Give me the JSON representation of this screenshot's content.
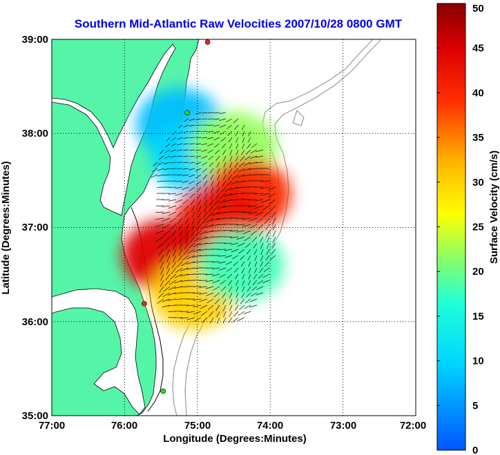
{
  "title": "Southern Mid-Atlantic Raw Velocities 2007/10/28 0800 GMT",
  "axes": {
    "xlabel": "Longitude (Degrees:Minutes)",
    "ylabel": "Latitude (Degrees:Minutes)",
    "xticks": [
      "77:00",
      "76:00",
      "75:00",
      "74:00",
      "73:00",
      "72:00"
    ],
    "yticks": [
      "39:00",
      "38:00",
      "37:00",
      "36:00",
      "35:00"
    ],
    "xlim": [
      -77,
      -72
    ],
    "ylim": [
      35,
      39
    ]
  },
  "colorbar": {
    "label": "Surface Velocity (cm/s)",
    "ticks": [
      "50",
      "45",
      "40",
      "35",
      "30",
      "25",
      "20",
      "15",
      "10",
      "5",
      "0"
    ],
    "range": [
      0,
      50
    ]
  },
  "colors": {
    "land": "#55f5a8",
    "water": "#ffffff",
    "title": "#0000ee",
    "bathymetry": "#999999"
  },
  "stations": [
    {
      "lon": -74.86,
      "lat": 38.97,
      "color": "#ff2020"
    },
    {
      "lon": -75.14,
      "lat": 38.22,
      "color": "#22dd22"
    },
    {
      "lon": -75.73,
      "lat": 36.19,
      "color": "#ff2020"
    },
    {
      "lon": -75.47,
      "lat": 35.26,
      "color": "#22dd22"
    }
  ],
  "chart_data": {
    "type": "heatmap",
    "title": "Southern Mid-Atlantic Raw Velocities 2007/10/28 0800 GMT",
    "xlabel": "Longitude (Degrees:Minutes)",
    "ylabel": "Latitude (Degrees:Minutes)",
    "value_label": "Surface Velocity (cm/s)",
    "value_range": [
      0,
      50
    ],
    "field_regions": [
      {
        "lon": -75.25,
        "lat": 38.1,
        "speed": 8
      },
      {
        "lon": -75.05,
        "lat": 37.75,
        "speed": 10
      },
      {
        "lon": -74.5,
        "lat": 37.85,
        "speed": 22
      },
      {
        "lon": -74.3,
        "lat": 37.35,
        "speed": 40
      },
      {
        "lon": -74.7,
        "lat": 37.1,
        "speed": 42
      },
      {
        "lon": -75.45,
        "lat": 36.7,
        "speed": 45
      },
      {
        "lon": -75.05,
        "lat": 36.3,
        "speed": 30
      },
      {
        "lon": -74.4,
        "lat": 36.6,
        "speed": 18
      }
    ]
  }
}
